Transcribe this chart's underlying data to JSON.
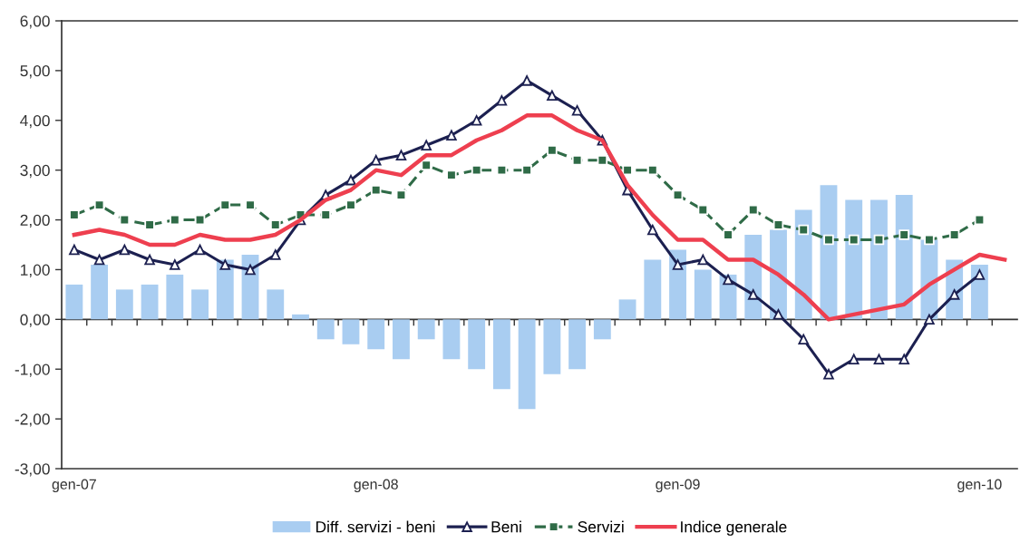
{
  "chart_data": {
    "type": "line",
    "categories": [
      "gen-07",
      null,
      null,
      null,
      null,
      null,
      null,
      null,
      null,
      null,
      null,
      null,
      "gen-08",
      null,
      null,
      null,
      null,
      null,
      null,
      null,
      null,
      null,
      null,
      null,
      "gen-09",
      null,
      null,
      null,
      null,
      null,
      null,
      null,
      null,
      null,
      null,
      null,
      "gen-10",
      null
    ],
    "ylim": [
      -3,
      6
    ],
    "yticks": [
      {
        "value": -3,
        "label": "-3,00"
      },
      {
        "value": -2,
        "label": "-2,00"
      },
      {
        "value": -1,
        "label": "-1,00"
      },
      {
        "value": 0,
        "label": "0,00"
      },
      {
        "value": 1,
        "label": "1,00"
      },
      {
        "value": 2,
        "label": "2,00"
      },
      {
        "value": 3,
        "label": "3,00"
      },
      {
        "value": 4,
        "label": "4,00"
      },
      {
        "value": 5,
        "label": "5,00"
      },
      {
        "value": 6,
        "label": "6,00"
      }
    ],
    "legend": "bottom",
    "series": [
      {
        "name": "Diff. servizi - beni",
        "type": "bar",
        "color": "#a9cdf1",
        "values": [
          0.7,
          1.1,
          0.6,
          0.7,
          0.9,
          0.6,
          1.2,
          1.3,
          0.6,
          0.1,
          -0.4,
          -0.5,
          -0.6,
          -0.8,
          -0.4,
          -0.8,
          -1.0,
          -1.4,
          -1.8,
          -1.1,
          -1.0,
          -0.4,
          0.4,
          1.2,
          1.4,
          1.0,
          0.9,
          1.7,
          1.8,
          2.2,
          2.7,
          2.4,
          2.4,
          2.5,
          1.6,
          1.2,
          1.1,
          null
        ]
      },
      {
        "name": "Beni",
        "color": "#1c2050",
        "marker": "triangle",
        "line_style": "solid",
        "values": [
          1.4,
          1.2,
          1.4,
          1.2,
          1.1,
          1.4,
          1.1,
          1.0,
          1.3,
          2.0,
          2.5,
          2.8,
          3.2,
          3.3,
          3.5,
          3.7,
          4.0,
          4.4,
          4.8,
          4.5,
          4.2,
          3.6,
          2.6,
          1.8,
          1.1,
          1.2,
          0.8,
          0.5,
          0.1,
          -0.4,
          -1.1,
          -0.8,
          -0.8,
          -0.8,
          0.0,
          0.5,
          0.9,
          null
        ]
      },
      {
        "name": "Servizi",
        "color": "#2f6b47",
        "marker": "square",
        "line_style": "dashed",
        "values": [
          2.1,
          2.3,
          2.0,
          1.9,
          2.0,
          2.0,
          2.3,
          2.3,
          1.9,
          2.1,
          2.1,
          2.3,
          2.6,
          2.5,
          3.1,
          2.9,
          3.0,
          3.0,
          3.0,
          3.4,
          3.2,
          3.2,
          3.0,
          3.0,
          2.5,
          2.2,
          1.7,
          2.2,
          1.9,
          1.8,
          1.6,
          1.6,
          1.6,
          1.7,
          1.6,
          1.7,
          2.0,
          null
        ]
      },
      {
        "name": "Indice generale",
        "color": "#ee3f4f",
        "marker": "none",
        "line_style": "solid",
        "values": [
          1.7,
          1.8,
          1.7,
          1.5,
          1.5,
          1.7,
          1.6,
          1.6,
          1.7,
          2.0,
          2.4,
          2.6,
          3.0,
          2.9,
          3.3,
          3.3,
          3.6,
          3.8,
          4.1,
          4.1,
          3.8,
          3.6,
          2.7,
          2.1,
          1.6,
          1.6,
          1.2,
          1.2,
          0.9,
          0.5,
          0.0,
          0.1,
          0.2,
          0.3,
          0.7,
          1.0,
          1.3,
          1.2
        ]
      }
    ]
  }
}
